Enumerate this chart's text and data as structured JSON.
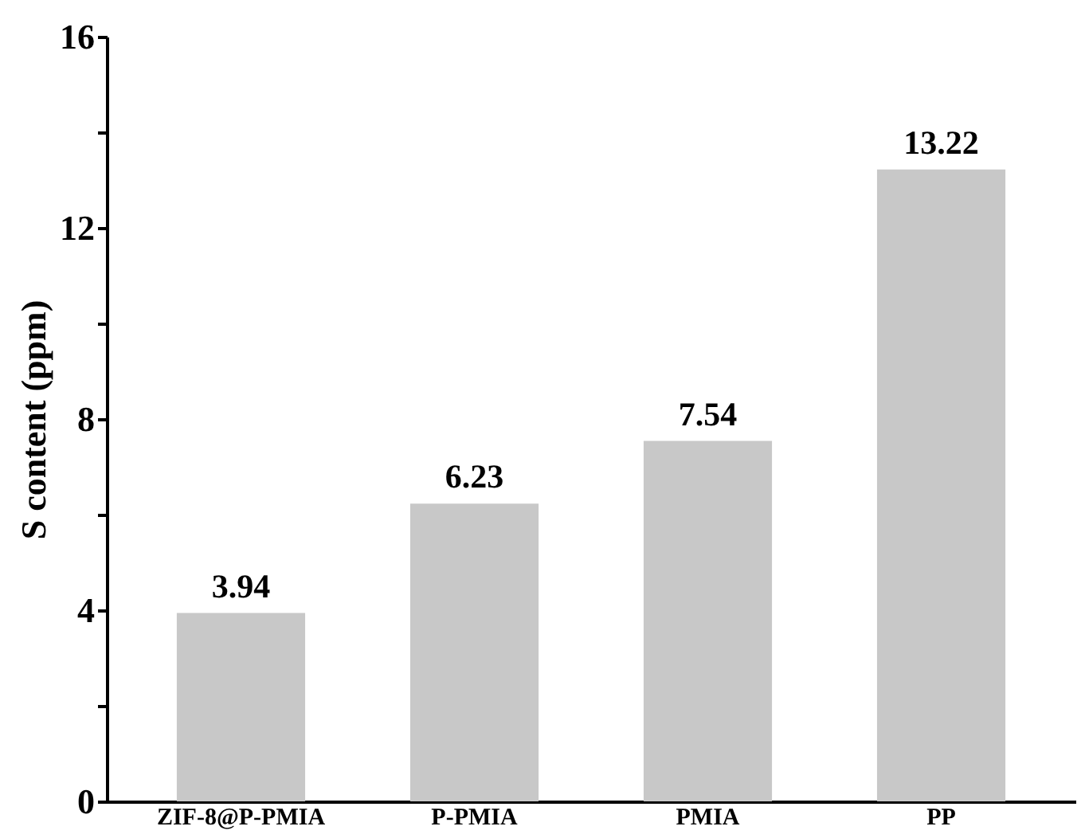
{
  "chart_data": {
    "type": "bar",
    "ylabel": "S content (ppm)",
    "categories": [
      "ZIF-8@P-PMIA",
      "P-PMIA",
      "PMIA",
      "PP"
    ],
    "values": [
      3.94,
      6.23,
      7.54,
      13.22
    ],
    "color": "#c8c8c8",
    "ylim": [
      0,
      16
    ],
    "yticks": [
      0,
      {
        "value": 2,
        "label": null
      },
      4,
      {
        "value": 6,
        "label": null
      },
      8,
      {
        "value": 10,
        "label": null
      },
      12,
      {
        "value": 14,
        "label": null
      },
      16
    ],
    "data_labels": true,
    "grid": false
  }
}
